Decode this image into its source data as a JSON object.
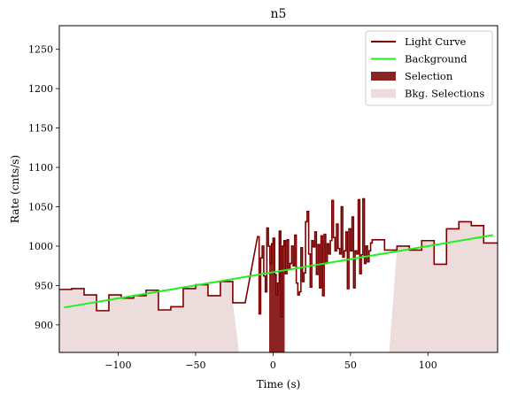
{
  "chart_data": {
    "type": "line",
    "title": "n5",
    "xlabel": "Time (s)",
    "ylabel": "Rate (cnts/s)",
    "xlim": [
      -138,
      145
    ],
    "ylim": [
      865,
      1280
    ],
    "xticks": [
      -100,
      -50,
      0,
      50,
      100
    ],
    "xtick_labels": [
      "−100",
      "−50",
      "0",
      "50",
      "100"
    ],
    "yticks": [
      900,
      950,
      1000,
      1050,
      1100,
      1150,
      1200,
      1250
    ],
    "grid": false,
    "legend_position": "top-right",
    "legend": [
      {
        "label": "Light Curve",
        "kind": "line",
        "color": "#7a0000"
      },
      {
        "label": "Background",
        "kind": "line",
        "color": "#22ee22"
      },
      {
        "label": "Selection",
        "kind": "patch",
        "color": "#8b2323"
      },
      {
        "label": "Bkg. Selections",
        "kind": "patch",
        "color": "#ecdcdc"
      }
    ],
    "light_curve": {
      "name": "Light Curve",
      "color": "#7a0000",
      "steps_coarse_left": {
        "edges": [
          -138,
          -130,
          -122,
          -114,
          -106,
          -98,
          -90,
          -82,
          -74,
          -66,
          -58,
          -50,
          -42,
          -34,
          -26,
          -18
        ],
        "values": [
          945,
          946,
          938,
          918,
          938,
          934,
          937,
          944,
          919,
          923,
          946,
          951,
          937,
          955,
          928
        ]
      },
      "steps_fine_middle": {
        "edges": [
          -10,
          -9,
          -8,
          -7,
          -6,
          -5,
          -4,
          -3,
          -2,
          -1,
          0,
          1,
          2,
          3,
          4,
          5,
          6,
          7,
          8,
          9,
          10,
          11,
          12,
          13,
          14,
          15,
          16,
          17,
          18,
          19,
          20,
          21,
          22,
          23,
          24,
          25,
          26,
          27,
          28,
          29,
          30,
          31,
          32,
          33,
          34,
          35,
          36,
          37,
          38,
          39,
          40,
          41,
          42,
          43,
          44,
          45,
          46,
          47,
          48,
          49,
          50,
          51,
          52,
          53,
          54,
          55,
          56,
          57,
          58,
          59,
          60,
          61,
          62,
          63,
          64
        ],
        "values": [
          1012,
          914,
          985,
          1000,
          962,
          942,
          1023,
          1000,
          978,
          1003,
          1010,
          964,
          938,
          953,
          1019,
          910,
          1000,
          1007,
          965,
          1008,
          972,
          978,
          1000,
          975,
          1014,
          953,
          938,
          942,
          998,
          955,
          966,
          1031,
          1044,
          990,
          948,
          1007,
          999,
          1018,
          964,
          1002,
          947,
          1013,
          937,
          1015,
          978,
          1003,
          990,
          1007,
          1058,
          1011,
          994,
          1028,
          997,
          990,
          1050,
          986,
          994,
          1018,
          946,
          1022,
          994,
          1037,
          947,
          994,
          990,
          1059,
          965,
          989,
          1060,
          978,
          1000,
          980,
          994,
          1004
        ]
      },
      "steps_coarse_right": {
        "edges": [
          64,
          72,
          80,
          88,
          96,
          104,
          112,
          120,
          128,
          136,
          145
        ],
        "values": [
          1008,
          995,
          1000,
          995,
          1007,
          977,
          1022,
          1031,
          1026,
          1004
        ]
      }
    },
    "background": {
      "name": "Background",
      "color": "#22ee22",
      "x": [
        -135,
        142
      ],
      "y": [
        922,
        1014
      ]
    },
    "selection": {
      "name": "Selection",
      "color": "#8b2323",
      "x_range": [
        -2.5,
        7.5
      ]
    },
    "bkg_selections": {
      "name": "Bkg. Selections",
      "color": "#ecdcdc",
      "ranges": [
        [
          -138,
          -22
        ],
        [
          75,
          145
        ]
      ]
    }
  }
}
